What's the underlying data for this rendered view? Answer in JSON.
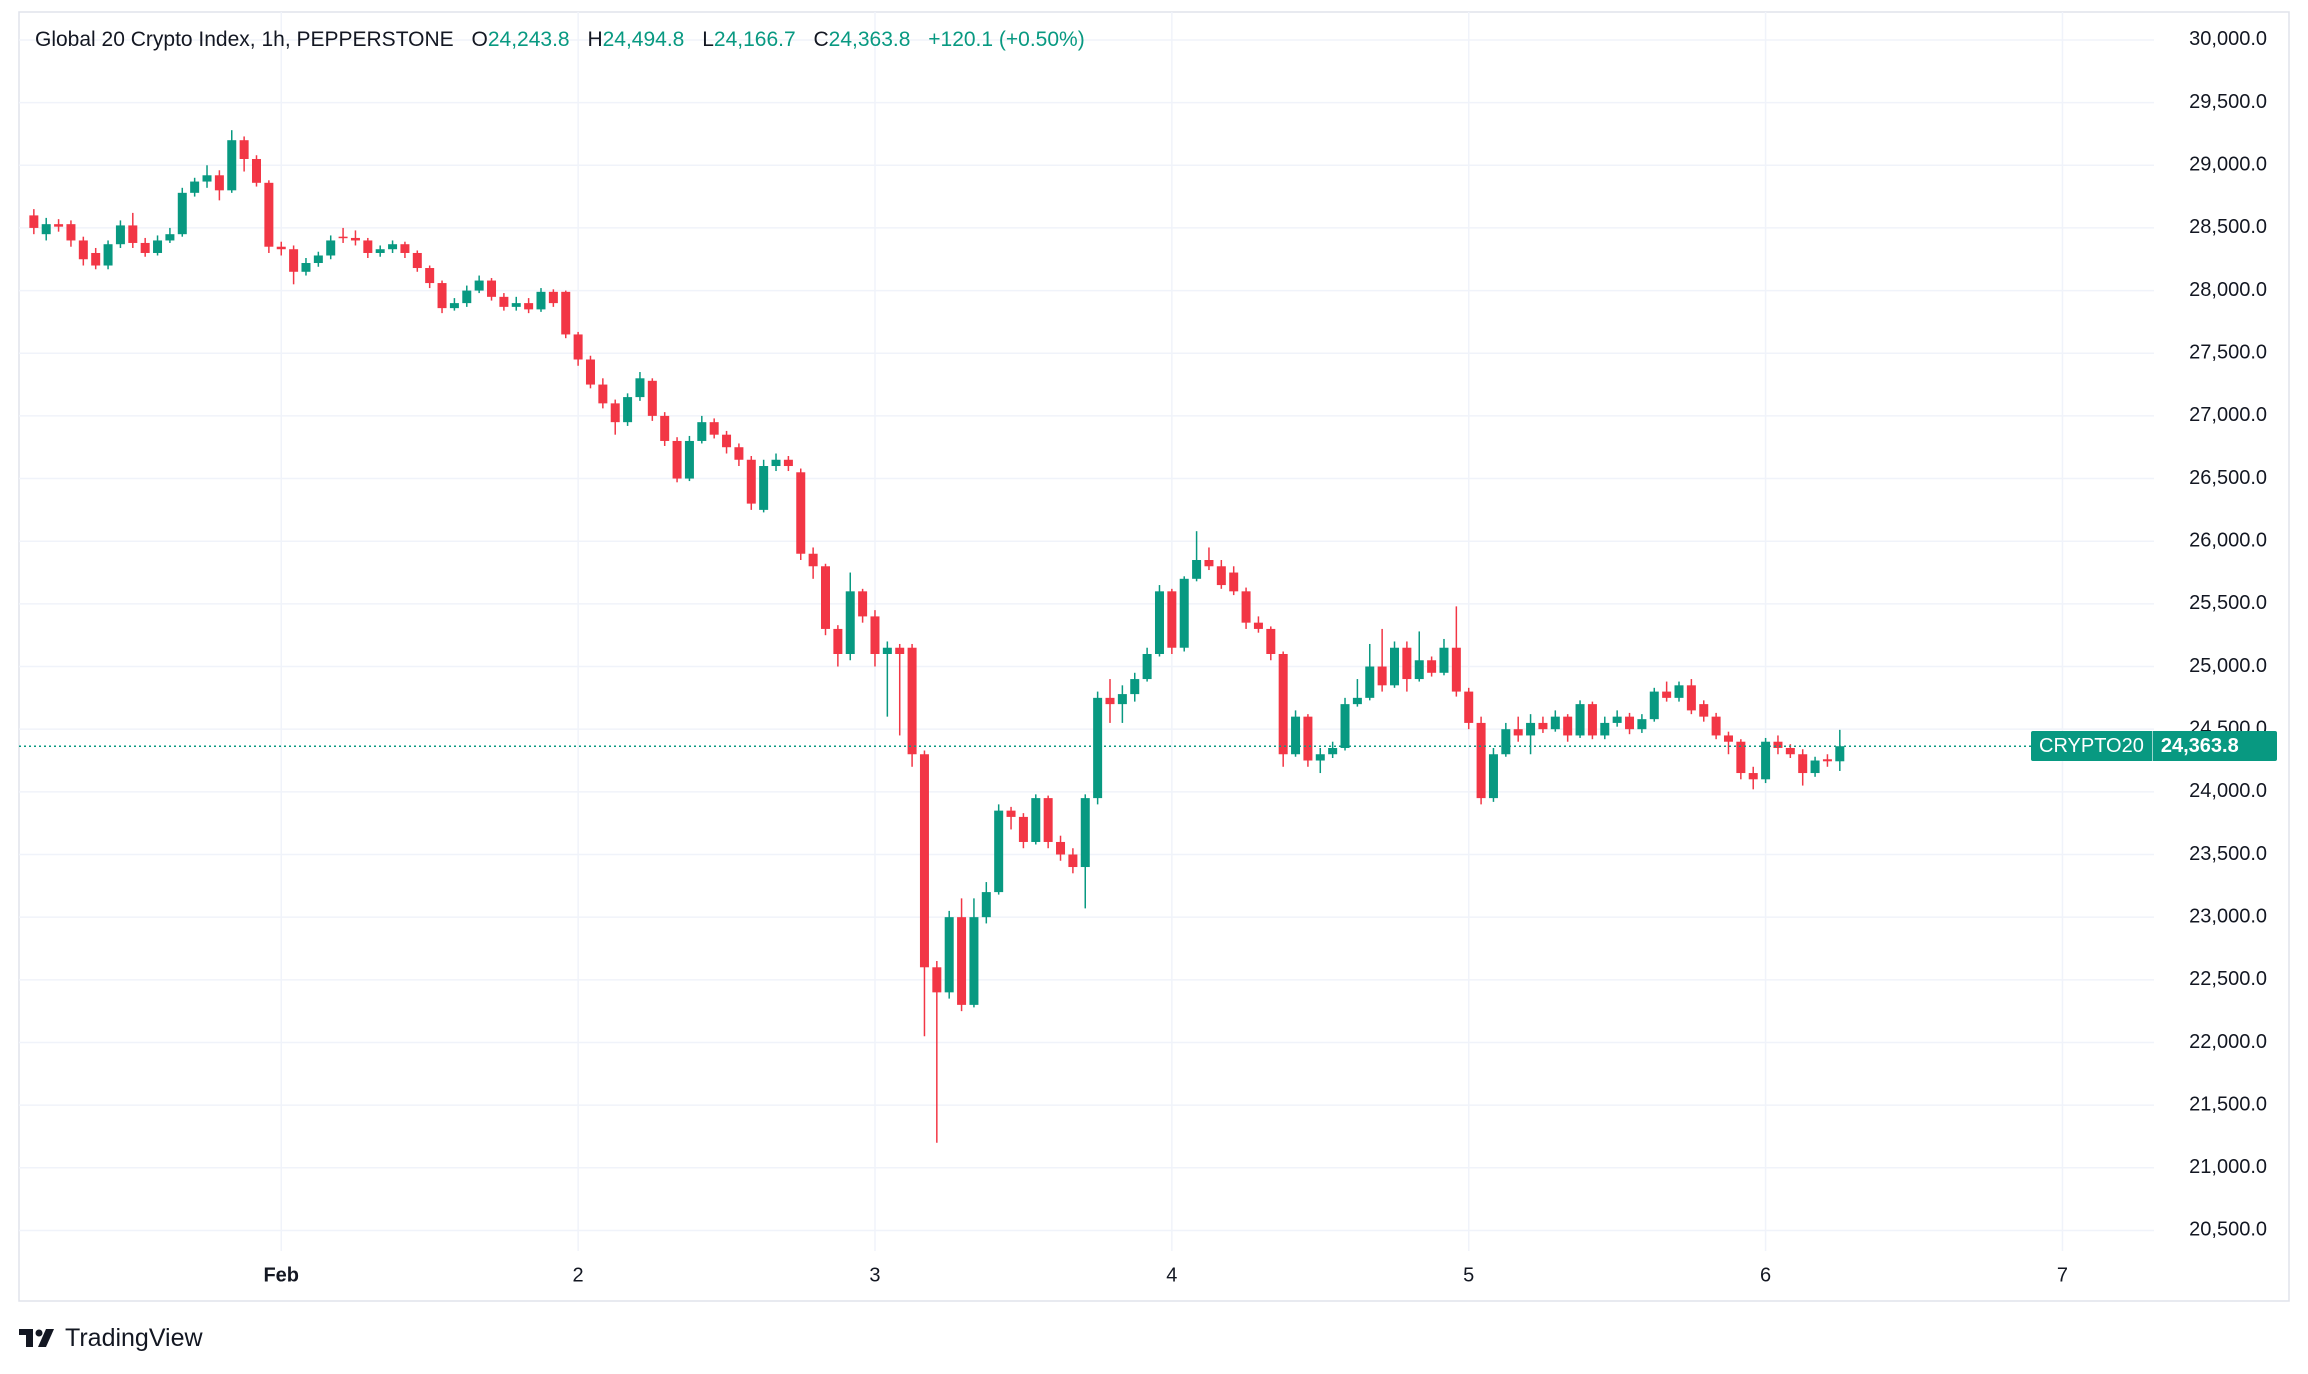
{
  "chart_data": {
    "type": "candlestick",
    "header": {
      "title": "Global 20 Crypto Index, 1h, PEPPERSTONE",
      "fields": [
        {
          "label": "O",
          "value": "24,243.8"
        },
        {
          "label": "H",
          "value": "24,494.8"
        },
        {
          "label": "L",
          "value": "24,166.7"
        },
        {
          "label": "C",
          "value": "24,363.8"
        }
      ],
      "change": "+120.1 (+0.50%)"
    },
    "up_color": "#089981",
    "down_color": "#f23645",
    "grid": true,
    "x": [
      -20,
      -19,
      -18,
      -17,
      -16,
      -15,
      -14,
      -13,
      -12,
      -11,
      -10,
      -9,
      -8,
      -7,
      -6,
      -5,
      -4,
      -3,
      -2,
      -1,
      0,
      1,
      2,
      3,
      4,
      5,
      6,
      7,
      8,
      9,
      10,
      11,
      12,
      13,
      14,
      15,
      16,
      17,
      18,
      19,
      20,
      21,
      22,
      23,
      24,
      25,
      26,
      27,
      28,
      29,
      30,
      31,
      32,
      33,
      34,
      35,
      36,
      37,
      38,
      39,
      40,
      41,
      42,
      43,
      44,
      45,
      46,
      47,
      48,
      49,
      50,
      51,
      52,
      53,
      54,
      55,
      56,
      57,
      58,
      59,
      60,
      61,
      62,
      63,
      64,
      65,
      66,
      67,
      68,
      69,
      70,
      71,
      72,
      73,
      74,
      75,
      76,
      77,
      78,
      79,
      80,
      81,
      82,
      83,
      84,
      85,
      86,
      87,
      88,
      89,
      90,
      91,
      92,
      93,
      94,
      95,
      96,
      97,
      98,
      99,
      100,
      101,
      102,
      103,
      104,
      105,
      106,
      107,
      108,
      109,
      110,
      111,
      112,
      113,
      114,
      115,
      116,
      117,
      118,
      119,
      120,
      121,
      122,
      123,
      124,
      125,
      126
    ],
    "open": [
      28600,
      28450,
      28530,
      28530,
      28400,
      28300,
      28200,
      28370,
      28520,
      28380,
      28300,
      28400,
      28450,
      28780,
      28870,
      28920,
      28800,
      29200,
      29050,
      28860,
      28350,
      28330,
      28150,
      28220,
      28280,
      28430,
      28420,
      28400,
      28300,
      28330,
      28370,
      28300,
      28180,
      28060,
      27860,
      27900,
      28000,
      28080,
      27950,
      27870,
      27900,
      27850,
      27990,
      27990,
      27650,
      27450,
      27250,
      27100,
      26950,
      27150,
      27280,
      27000,
      26800,
      26500,
      26800,
      26950,
      26850,
      26750,
      26650,
      26250,
      26600,
      26650,
      26550,
      25900,
      25800,
      25300,
      25100,
      25600,
      25400,
      25100,
      25150,
      25150,
      24300,
      22600,
      22400,
      23000,
      22300,
      23000,
      23200,
      23850,
      23800,
      23600,
      23950,
      23600,
      23500,
      23400,
      23950,
      24750,
      24700,
      24780,
      24900,
      25100,
      25600,
      25150,
      25700,
      25850,
      25800,
      25750,
      25600,
      25350,
      25300,
      25100,
      24300,
      24600,
      24250,
      24300,
      24350,
      24700,
      24750,
      25000,
      24850,
      25150,
      24900,
      25050,
      24950,
      25150,
      24800,
      24550,
      23950,
      24300,
      24500,
      24450,
      24550,
      24500,
      24600,
      24450,
      24700,
      24450,
      24550,
      24600,
      24500,
      24580,
      24800,
      24750,
      24850,
      24700,
      24600,
      24450,
      24400,
      24150,
      24100,
      24400,
      24350,
      24300,
      24150,
      24260,
      24243.8
    ],
    "high": [
      28650,
      28580,
      28570,
      28560,
      28430,
      28340,
      28400,
      28560,
      28620,
      28420,
      28440,
      28500,
      28820,
      28900,
      29000,
      28960,
      29280,
      29230,
      29080,
      28880,
      28390,
      28360,
      28260,
      28310,
      28440,
      28500,
      28480,
      28420,
      28360,
      28400,
      28390,
      28320,
      28200,
      28080,
      27940,
      28040,
      28120,
      28100,
      27980,
      27950,
      27940,
      28020,
      28010,
      28000,
      27670,
      27480,
      27300,
      27130,
      27180,
      27350,
      27300,
      27030,
      26830,
      26840,
      27000,
      26980,
      26880,
      26780,
      26680,
      26650,
      26700,
      26680,
      26580,
      25950,
      25820,
      25330,
      25750,
      25620,
      25450,
      25200,
      25180,
      25180,
      24330,
      22650,
      23050,
      23150,
      23150,
      23280,
      23900,
      23880,
      23830,
      23980,
      23970,
      23650,
      23550,
      23980,
      24800,
      24900,
      24850,
      24950,
      25150,
      25650,
      25620,
      25720,
      26080,
      25950,
      25850,
      25800,
      25630,
      25400,
      25320,
      25120,
      24650,
      24620,
      24350,
      24400,
      24750,
      24900,
      25180,
      25300,
      25200,
      25200,
      25280,
      25080,
      25220,
      25480,
      24830,
      24600,
      24350,
      24550,
      24600,
      24620,
      24600,
      24650,
      24620,
      24730,
      24720,
      24600,
      24650,
      24630,
      24620,
      24830,
      24880,
      24880,
      24900,
      24730,
      24630,
      24480,
      24420,
      24200,
      24430,
      24450,
      24380,
      24340,
      24280,
      24300,
      24494.8
    ],
    "low": [
      28450,
      28400,
      28470,
      28350,
      28200,
      28170,
      28170,
      28340,
      28340,
      28270,
      28280,
      28380,
      28430,
      28750,
      28820,
      28720,
      28780,
      28950,
      28830,
      28300,
      28280,
      28050,
      28120,
      28190,
      28250,
      28380,
      28360,
      28260,
      28270,
      28300,
      28260,
      28150,
      28020,
      27820,
      27840,
      27870,
      27980,
      27920,
      27840,
      27840,
      27820,
      27830,
      27870,
      27620,
      27400,
      27220,
      27060,
      26850,
      26920,
      27120,
      26960,
      26760,
      26470,
      26480,
      26780,
      26820,
      26700,
      26600,
      26250,
      26230,
      26560,
      26560,
      25850,
      25700,
      25250,
      25000,
      25050,
      25350,
      25000,
      24600,
      24450,
      24200,
      22050,
      21200,
      22350,
      22250,
      22280,
      22950,
      23180,
      23700,
      23550,
      23580,
      23550,
      23450,
      23350,
      23070,
      23900,
      24550,
      24550,
      24720,
      24880,
      25080,
      25100,
      25120,
      25680,
      25770,
      25620,
      25570,
      25300,
      25270,
      25050,
      24200,
      24280,
      24200,
      24150,
      24270,
      24330,
      24680,
      24730,
      24800,
      24830,
      24800,
      24880,
      24920,
      24930,
      24760,
      24500,
      23900,
      23920,
      24280,
      24400,
      24300,
      24470,
      24480,
      24400,
      24430,
      24420,
      24420,
      24520,
      24460,
      24470,
      24560,
      24720,
      24720,
      24620,
      24560,
      24420,
      24300,
      24100,
      24020,
      24070,
      24300,
      24270,
      24050,
      24120,
      24200,
      24166.7
    ],
    "close": [
      28500,
      28530,
      28510,
      28400,
      28250,
      28200,
      28370,
      28520,
      28380,
      28300,
      28400,
      28450,
      28780,
      28870,
      28920,
      28800,
      29200,
      29050,
      28860,
      28350,
      28330,
      28150,
      28220,
      28280,
      28400,
      28420,
      28400,
      28300,
      28330,
      28370,
      28300,
      28180,
      28060,
      27860,
      27900,
      28000,
      28080,
      27950,
      27870,
      27900,
      27850,
      27990,
      27900,
      27650,
      27450,
      27250,
      27100,
      26950,
      27150,
      27300,
      27000,
      26800,
      26500,
      26800,
      26950,
      26850,
      26750,
      26650,
      26300,
      26600,
      26650,
      26600,
      25900,
      25800,
      25300,
      25100,
      25600,
      25400,
      25100,
      25150,
      25100,
      24300,
      22600,
      22400,
      23000,
      22300,
      23000,
      23200,
      23850,
      23800,
      23600,
      23950,
      23600,
      23500,
      23400,
      23950,
      24750,
      24700,
      24780,
      24900,
      25100,
      25600,
      25150,
      25700,
      25850,
      25800,
      25650,
      25600,
      25350,
      25300,
      25100,
      24300,
      24600,
      24250,
      24300,
      24350,
      24700,
      24750,
      25000,
      24850,
      25150,
      24900,
      25050,
      24950,
      25150,
      24800,
      24550,
      23950,
      24300,
      24500,
      24450,
      24550,
      24500,
      24600,
      24450,
      24700,
      24450,
      24550,
      24600,
      24500,
      24580,
      24800,
      24750,
      24850,
      24650,
      24600,
      24450,
      24400,
      24150,
      24100,
      24400,
      24350,
      24300,
      24150,
      24250,
      24243.7,
      24363.8
    ],
    "xlim": [
      -21.2,
      151.4
    ],
    "xticks": [
      {
        "value": 0,
        "label": "Feb"
      },
      {
        "value": 24,
        "label": "2"
      },
      {
        "value": 48,
        "label": "3"
      },
      {
        "value": 72,
        "label": "4"
      },
      {
        "value": 96,
        "label": "5"
      },
      {
        "value": 120,
        "label": "6"
      },
      {
        "value": 144,
        "label": "7"
      }
    ],
    "ylim": [
      20336,
      30223
    ],
    "yticks": [
      {
        "value": 20500,
        "label": "20,500.0"
      },
      {
        "value": 21000,
        "label": "21,000.0"
      },
      {
        "value": 21500,
        "label": "21,500.0"
      },
      {
        "value": 22000,
        "label": "22,000.0"
      },
      {
        "value": 22500,
        "label": "22,500.0"
      },
      {
        "value": 23000,
        "label": "23,000.0"
      },
      {
        "value": 23500,
        "label": "23,500.0"
      },
      {
        "value": 24000,
        "label": "24,000.0"
      },
      {
        "value": 24500,
        "label": "24,500.0"
      },
      {
        "value": 25000,
        "label": "25,000.0"
      },
      {
        "value": 25500,
        "label": "25,500.0"
      },
      {
        "value": 26000,
        "label": "26,000.0"
      },
      {
        "value": 26500,
        "label": "26,500.0"
      },
      {
        "value": 27000,
        "label": "27,000.0"
      },
      {
        "value": 27500,
        "label": "27,500.0"
      },
      {
        "value": 28000,
        "label": "28,000.0"
      },
      {
        "value": 28500,
        "label": "28,500.0"
      },
      {
        "value": 29000,
        "label": "29,000.0"
      },
      {
        "value": 29500,
        "label": "29,500.0"
      },
      {
        "value": 30000,
        "label": "30,000.0"
      }
    ],
    "last_price": {
      "name": "CRYPTO20",
      "value": 24363.8,
      "label": "24,363.8"
    },
    "watermark": "TradingView"
  }
}
